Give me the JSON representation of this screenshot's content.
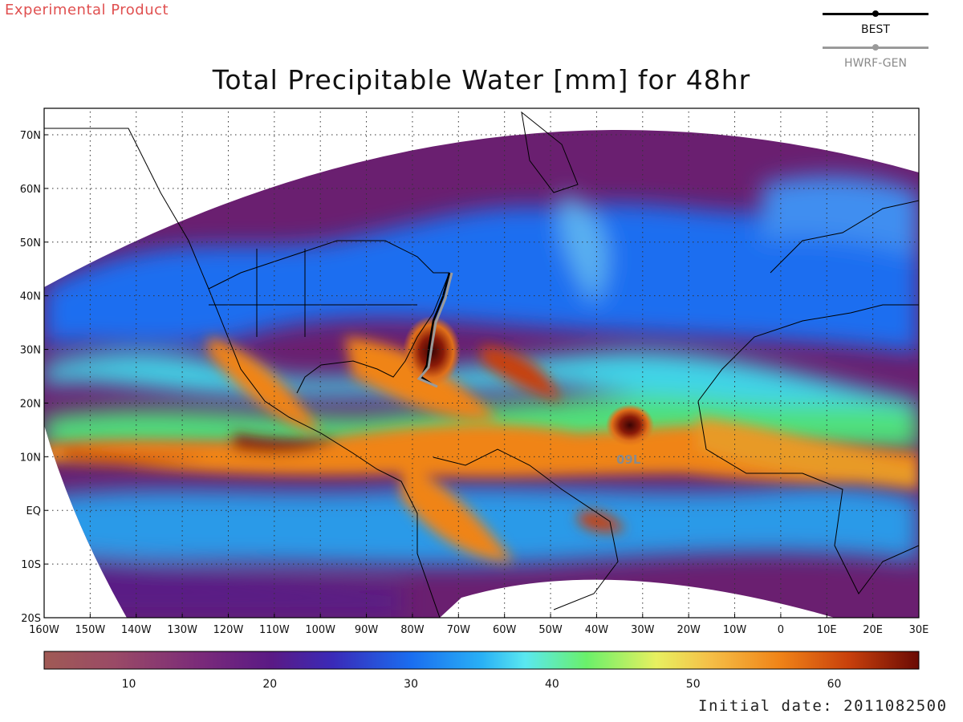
{
  "header": {
    "product_label": "Experimental Product",
    "title": "Total Precipitable Water [mm] for 48hr"
  },
  "legend": {
    "items": [
      {
        "label": "BEST",
        "color": "#000000"
      },
      {
        "label": "HWRF-GEN",
        "color": "#9a9a9a"
      }
    ]
  },
  "map": {
    "lat_labels": [
      "70N",
      "60N",
      "50N",
      "40N",
      "30N",
      "20N",
      "10N",
      "EQ",
      "10S",
      "20S"
    ],
    "lon_labels": [
      "160W",
      "150W",
      "140W",
      "130W",
      "120W",
      "110W",
      "100W",
      "90W",
      "80W",
      "70W",
      "60W",
      "50W",
      "40W",
      "30W",
      "20W",
      "10W",
      "0",
      "10E",
      "20E",
      "30E"
    ],
    "storm_labels": [
      {
        "text": "09L",
        "color": "#8a8a8a"
      }
    ],
    "palette": {
      "ocean_dry": "#6a1f70",
      "ocean_mid": "#1a6ef0",
      "ocean_moist": "#48d8d0",
      "tropics": "#e67a18",
      "tropics_peak": "#8a1a08",
      "land_dry": "#a05a55"
    }
  },
  "colorbar": {
    "ticks": [
      "10",
      "20",
      "30",
      "40",
      "50",
      "60"
    ],
    "range": [
      4,
      66
    ]
  },
  "footer": {
    "initial_date": "Initial date: 2011082500"
  }
}
